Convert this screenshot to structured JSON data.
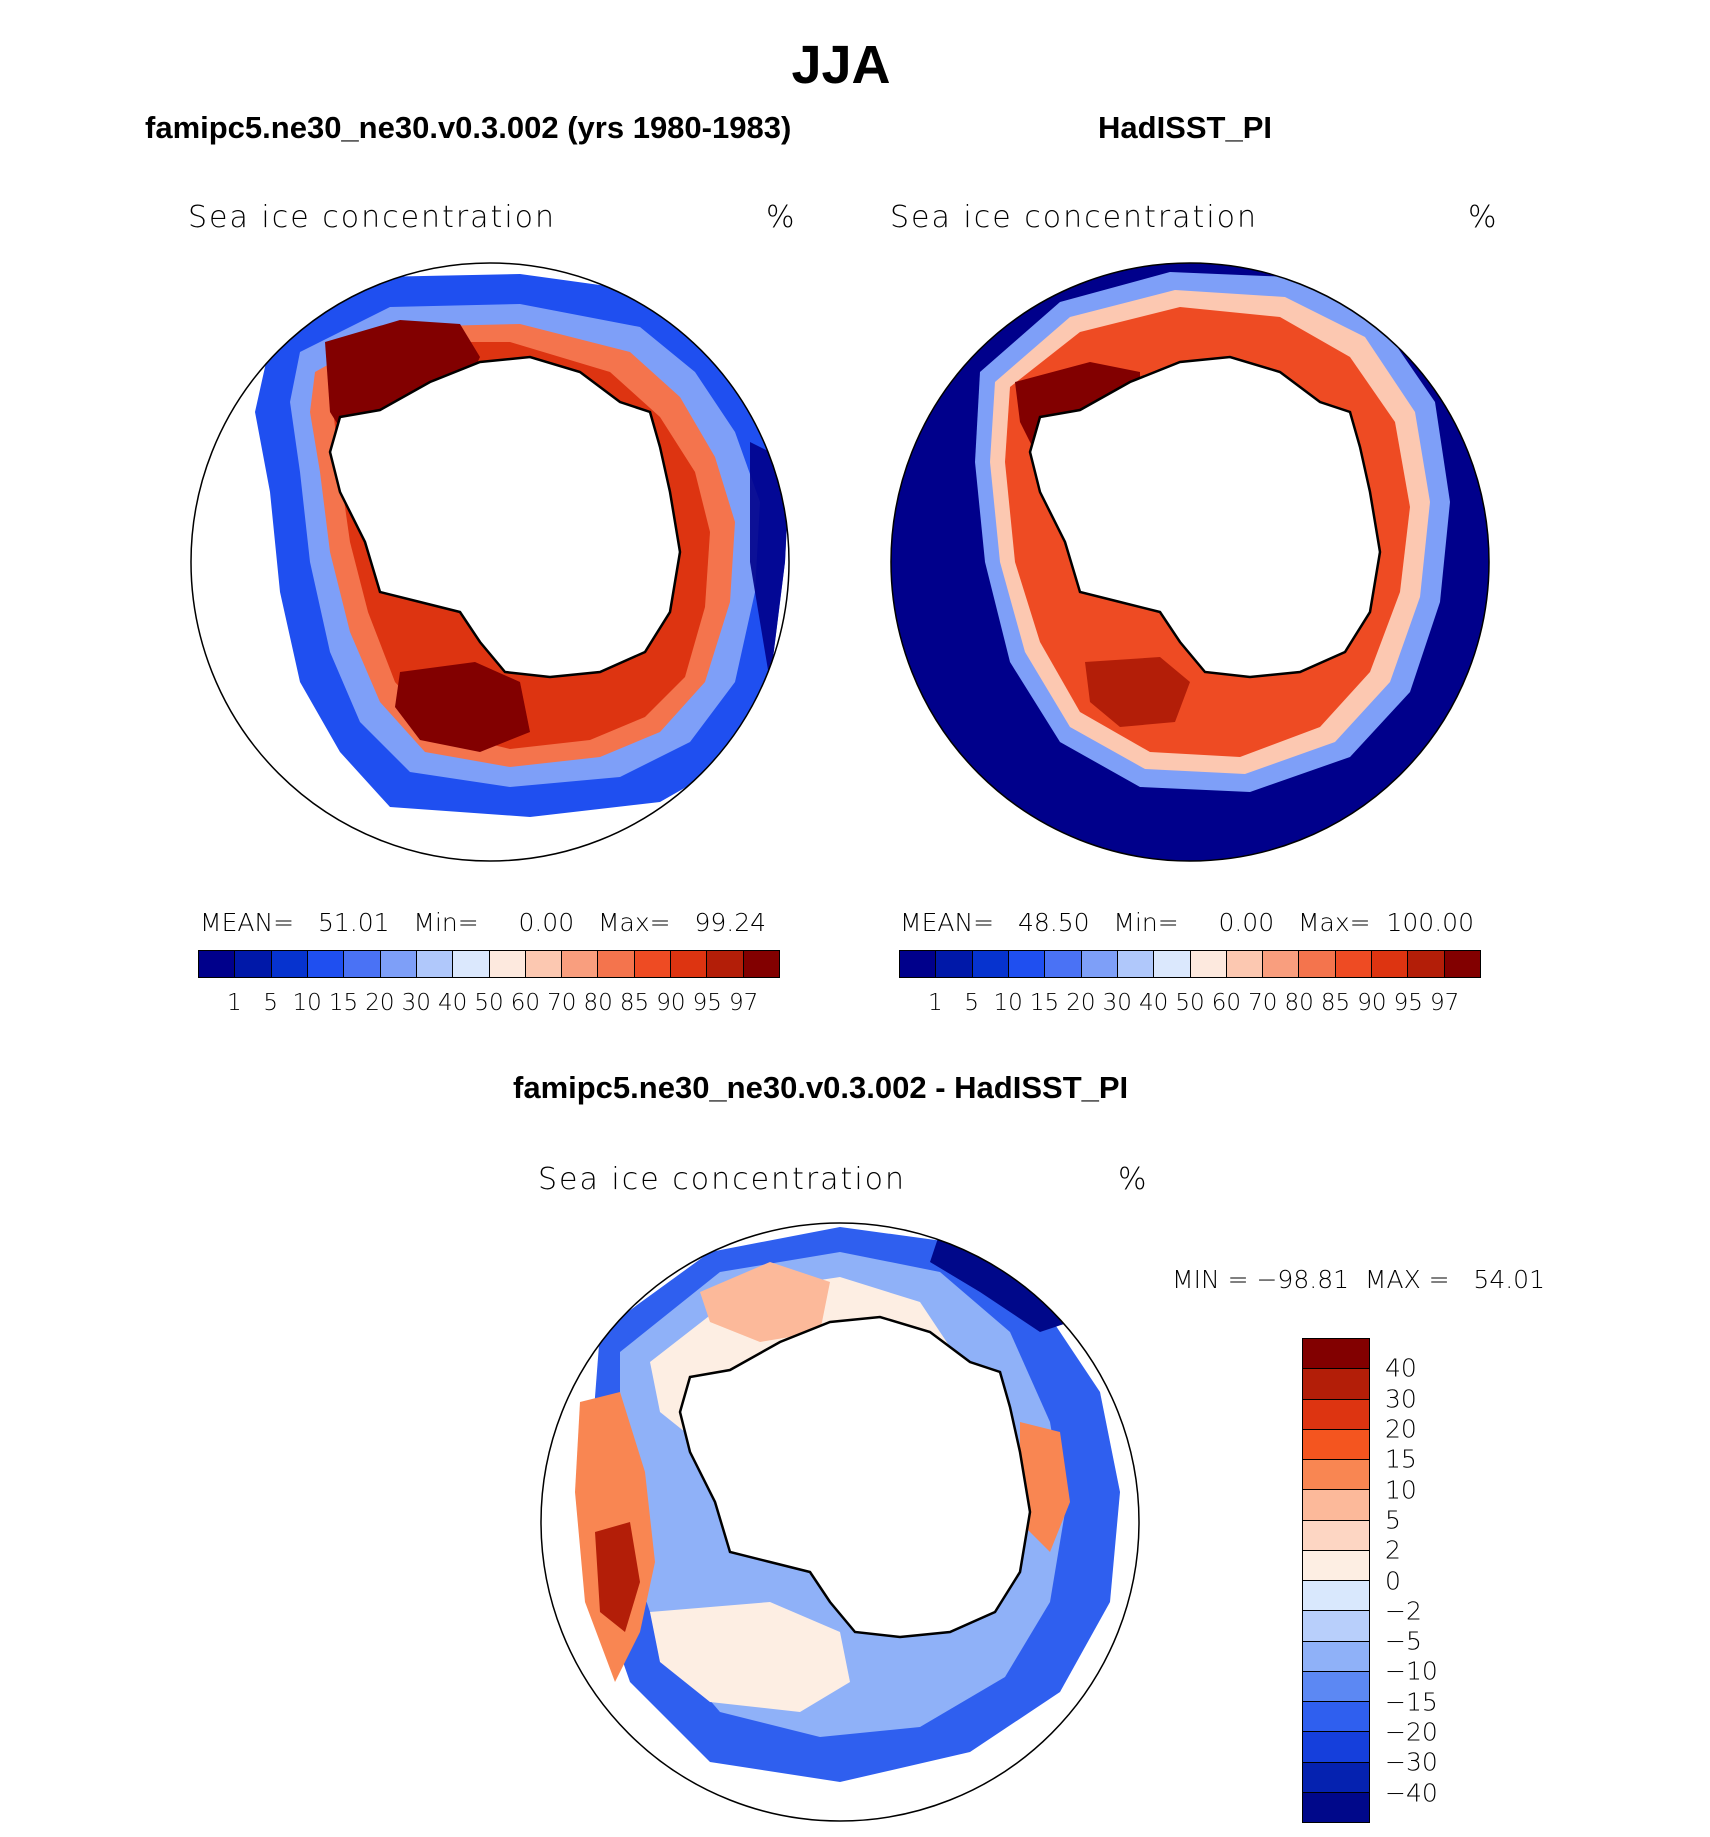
{
  "figure": {
    "title": "JJA",
    "variable_label": "Sea ice concentration",
    "units": "%"
  },
  "panels": [
    {
      "title": "famipc5.ne30_ne30.v0.3.002 (yrs 1980-1983)",
      "mean_label": "MEAN=",
      "mean": "51.01",
      "min_label": "Min=",
      "min": "0.00",
      "max_label": "Max=",
      "max": "99.24"
    },
    {
      "title": "HadISST_PI",
      "mean_label": "MEAN=",
      "mean": "48.50",
      "min_label": "Min=",
      "min": "0.00",
      "max_label": "Max=",
      "max": "100.00"
    },
    {
      "title": "famipc5.ne30_ne30.v0.3.002 - HadISST_PI",
      "minmax": "MIN = −98.81  MAX =   54.01"
    }
  ],
  "abs_colorbar": {
    "colors": [
      "#00008b",
      "#0018a8",
      "#0633cf",
      "#1f4ff0",
      "#4a72f5",
      "#7e9ff8",
      "#b0c8fb",
      "#dbe8fd",
      "#fde9de",
      "#fcc8b1",
      "#f99e7e",
      "#f4744d",
      "#ee4b23",
      "#dd3411",
      "#b31e08",
      "#820000"
    ],
    "ticks": [
      "1",
      "5",
      "10",
      "15",
      "20",
      "30",
      "40",
      "50",
      "60",
      "70",
      "80",
      "85",
      "90",
      "95",
      "97"
    ]
  },
  "diff_colorbar": {
    "colors": [
      "#820000",
      "#b31e08",
      "#dd3411",
      "#f4551f",
      "#f98652",
      "#fcb99a",
      "#fdd6c3",
      "#fdeee3",
      "#d9e8fd",
      "#b8cffb",
      "#8fb1f8",
      "#5c88f3",
      "#2f5fef",
      "#153fdc",
      "#0522b0",
      "#00088a"
    ],
    "ticks": [
      "40",
      "30",
      "20",
      "15",
      "10",
      "5",
      "2",
      "0",
      "−2",
      "−5",
      "−10",
      "−15",
      "−20",
      "−30",
      "−40"
    ]
  }
}
